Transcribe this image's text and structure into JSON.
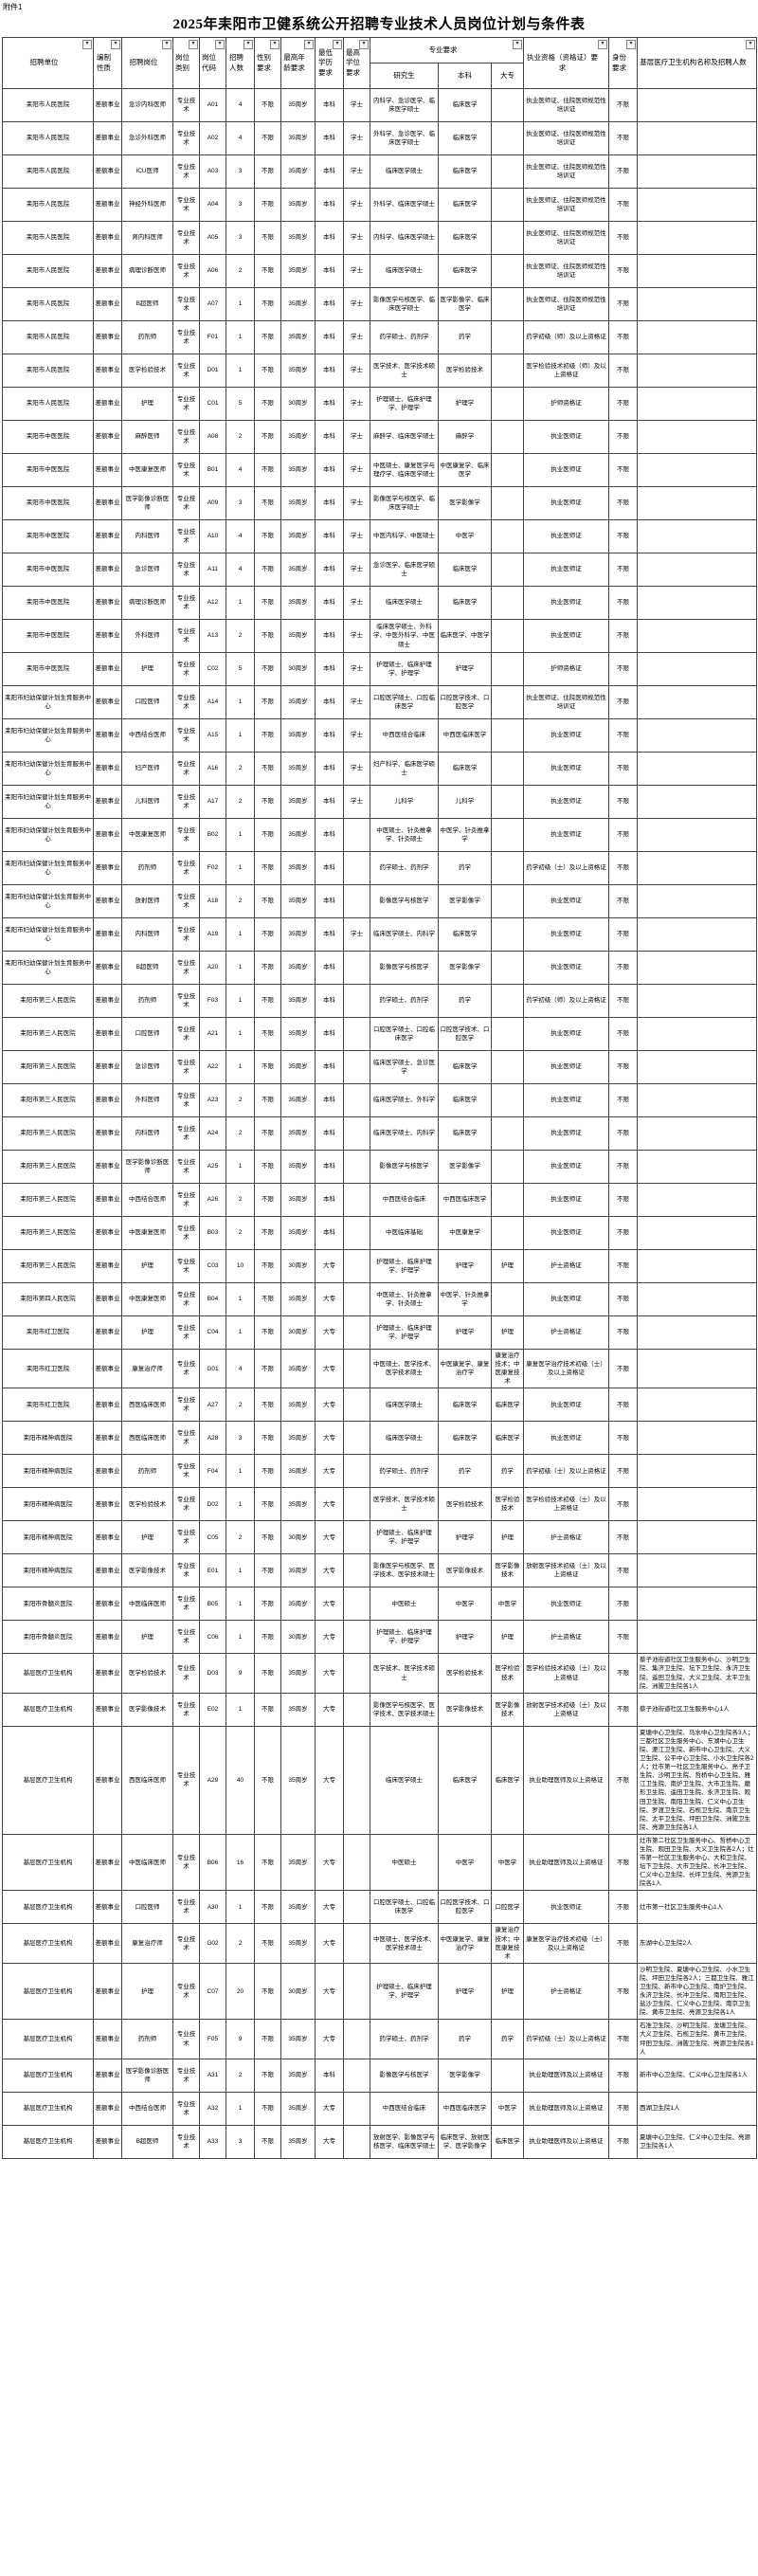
{
  "page": {
    "attachment_label": "附件1",
    "title": "2025年耒阳市卫健系统公开招聘专业技术人员岗位计划与条件表"
  },
  "table": {
    "headers": {
      "unit": "招聘单位",
      "nature": "编制性质",
      "post": "招聘岗位",
      "category": "岗位类别",
      "code": "岗位代码",
      "count": "招聘人数",
      "gender": "性别要求",
      "age": "最高年龄要求",
      "edu": "最低学历要求",
      "degree": "最高学位要求",
      "major_group": "专业要求",
      "grad": "研究生",
      "bachelor": "本科",
      "college": "大专",
      "qualification": "执业资格（资格证）要求",
      "identity": "身份要求",
      "grassroots": "基层医疗卫生机构名称及招聘人数"
    },
    "filter_icon": "▾",
    "rows": [
      [
        "耒阳市人民医院",
        "差额事业",
        "急诊内科医师",
        "专业技术",
        "A01",
        "4",
        "不限",
        "35周岁",
        "本科",
        "学士",
        "内科学、急诊医学、临床医学硕士",
        "临床医学",
        "",
        "执业医师证、住院医师规范性培训证",
        "不限",
        ""
      ],
      [
        "耒阳市人民医院",
        "差额事业",
        "急诊外科医师",
        "专业技术",
        "A02",
        "4",
        "不限",
        "35周岁",
        "本科",
        "学士",
        "外科学、急诊医学、临床医学硕士",
        "临床医学",
        "",
        "执业医师证、住院医师规范性培训证",
        "不限",
        ""
      ],
      [
        "耒阳市人民医院",
        "差额事业",
        "ICU医师",
        "专业技术",
        "A03",
        "3",
        "不限",
        "35周岁",
        "本科",
        "学士",
        "临床医学硕士",
        "临床医学",
        "",
        "执业医师证、住院医师规范性培训证",
        "不限",
        ""
      ],
      [
        "耒阳市人民医院",
        "差额事业",
        "神经外科医师",
        "专业技术",
        "A04",
        "3",
        "不限",
        "35周岁",
        "本科",
        "学士",
        "外科学、临床医学硕士",
        "临床医学",
        "",
        "执业医师证、住院医师规范性培训证",
        "不限",
        ""
      ],
      [
        "耒阳市人民医院",
        "差额事业",
        "肾内科医师",
        "专业技术",
        "A05",
        "3",
        "不限",
        "35周岁",
        "本科",
        "学士",
        "内科学、临床医学硕士",
        "临床医学",
        "",
        "执业医师证、住院医师规范性培训证",
        "不限",
        ""
      ],
      [
        "耒阳市人民医院",
        "差额事业",
        "病理诊断医师",
        "专业技术",
        "A06",
        "2",
        "不限",
        "35周岁",
        "本科",
        "学士",
        "临床医学硕士",
        "临床医学",
        "",
        "执业医师证、住院医师规范性培训证",
        "不限",
        ""
      ],
      [
        "耒阳市人民医院",
        "差额事业",
        "B超医师",
        "专业技术",
        "A07",
        "1",
        "不限",
        "35周岁",
        "本科",
        "学士",
        "影像医学与核医学、临床医学硕士",
        "医学影像学、临床医学",
        "",
        "执业医师证、住院医师规范性培训证",
        "不限",
        ""
      ],
      [
        "耒阳市人民医院",
        "差额事业",
        "药剂师",
        "专业技术",
        "F01",
        "1",
        "不限",
        "35周岁",
        "本科",
        "学士",
        "药学硕士、药剂学",
        "药学",
        "",
        "药学初级（师）及以上资格证",
        "不限",
        ""
      ],
      [
        "耒阳市人民医院",
        "差额事业",
        "医学检验技术",
        "专业技术",
        "D01",
        "1",
        "不限",
        "35周岁",
        "本科",
        "学士",
        "医学技术、医学技术硕士",
        "医学检验技术",
        "",
        "医学检验技术初级（师）及以上资格证",
        "不限",
        ""
      ],
      [
        "耒阳市人民医院",
        "差额事业",
        "护理",
        "专业技术",
        "C01",
        "5",
        "不限",
        "30周岁",
        "本科",
        "学士",
        "护理硕士、临床护理学、护理学",
        "护理学",
        "",
        "护师资格证",
        "不限",
        ""
      ],
      [
        "耒阳市中医医院",
        "差额事业",
        "麻醉医师",
        "专业技术",
        "A08",
        "2",
        "不限",
        "35周岁",
        "本科",
        "学士",
        "麻醉学、临床医学硕士",
        "麻醉学",
        "",
        "执业医师证",
        "不限",
        ""
      ],
      [
        "耒阳市中医医院",
        "差额事业",
        "中医康复医师",
        "专业技术",
        "B01",
        "4",
        "不限",
        "35周岁",
        "本科",
        "学士",
        "中医硕士、康复医学与理疗学、临床医学硕士",
        "中医康复学、临床医学",
        "",
        "执业医师证",
        "不限",
        ""
      ],
      [
        "耒阳市中医医院",
        "差额事业",
        "医学影像诊断医师",
        "专业技术",
        "A09",
        "3",
        "不限",
        "35周岁",
        "本科",
        "学士",
        "影像医学与核医学、临床医学硕士",
        "医学影像学",
        "",
        "执业医师证",
        "不限",
        ""
      ],
      [
        "耒阳市中医医院",
        "差额事业",
        "内科医师",
        "专业技术",
        "A10",
        "4",
        "不限",
        "35周岁",
        "本科",
        "学士",
        "中医内科学、中医硕士",
        "中医学",
        "",
        "执业医师证",
        "不限",
        ""
      ],
      [
        "耒阳市中医医院",
        "差额事业",
        "急诊医师",
        "专业技术",
        "A11",
        "4",
        "不限",
        "35周岁",
        "本科",
        "学士",
        "急诊医学、临床医学硕士",
        "临床医学",
        "",
        "执业医师证",
        "不限",
        ""
      ],
      [
        "耒阳市中医医院",
        "差额事业",
        "病理诊断医师",
        "专业技术",
        "A12",
        "1",
        "不限",
        "35周岁",
        "本科",
        "学士",
        "临床医学硕士",
        "临床医学",
        "",
        "执业医师证",
        "不限",
        ""
      ],
      [
        "耒阳市中医医院",
        "差额事业",
        "外科医师",
        "专业技术",
        "A13",
        "2",
        "不限",
        "35周岁",
        "本科",
        "学士",
        "临床医学硕士、外科学、中医外科学、中医硕士",
        "临床医学、中医学",
        "",
        "执业医师证",
        "不限",
        ""
      ],
      [
        "耒阳市中医医院",
        "差额事业",
        "护理",
        "专业技术",
        "C02",
        "5",
        "不限",
        "30周岁",
        "本科",
        "学士",
        "护理硕士、临床护理学、护理学",
        "护理学",
        "",
        "护师资格证",
        "不限",
        ""
      ],
      [
        "耒阳市妇幼保健计划生育服务中心",
        "差额事业",
        "口腔医师",
        "专业技术",
        "A14",
        "1",
        "不限",
        "35周岁",
        "本科",
        "学士",
        "口腔医学硕士、口腔临床医学",
        "口腔医学技术、口腔医学",
        "",
        "执业医师证、住院医师规范性培训证",
        "不限",
        ""
      ],
      [
        "耒阳市妇幼保健计划生育服务中心",
        "差额事业",
        "中西结合医师",
        "专业技术",
        "A15",
        "1",
        "不限",
        "35周岁",
        "本科",
        "学士",
        "中西医结合临床",
        "中西医临床医学",
        "",
        "执业医师证",
        "不限",
        ""
      ],
      [
        "耒阳市妇幼保健计划生育服务中心",
        "差额事业",
        "妇产医师",
        "专业技术",
        "A16",
        "2",
        "不限",
        "35周岁",
        "本科",
        "学士",
        "妇产科学、临床医学硕士",
        "临床医学",
        "",
        "执业医师证",
        "不限",
        ""
      ],
      [
        "耒阳市妇幼保健计划生育服务中心",
        "差额事业",
        "儿科医师",
        "专业技术",
        "A17",
        "2",
        "不限",
        "35周岁",
        "本科",
        "学士",
        "儿科学",
        "儿科学",
        "",
        "执业医师证",
        "不限",
        ""
      ],
      [
        "耒阳市妇幼保健计划生育服务中心",
        "差额事业",
        "中医康复医师",
        "专业技术",
        "B02",
        "1",
        "不限",
        "35周岁",
        "本科",
        "",
        "中医硕士、针灸推拿学、针灸硕士",
        "中医学、针灸推拿学",
        "",
        "执业医师证",
        "不限",
        ""
      ],
      [
        "耒阳市妇幼保健计划生育服务中心",
        "差额事业",
        "药剂师",
        "专业技术",
        "F02",
        "1",
        "不限",
        "35周岁",
        "本科",
        "",
        "药学硕士、药剂学",
        "药学",
        "",
        "药学初级（士）及以上资格证",
        "不限",
        ""
      ],
      [
        "耒阳市妇幼保健计划生育服务中心",
        "差额事业",
        "放射医师",
        "专业技术",
        "A18",
        "2",
        "不限",
        "35周岁",
        "本科",
        "",
        "影像医学与核医学",
        "医学影像学",
        "",
        "执业医师证",
        "不限",
        ""
      ],
      [
        "耒阳市妇幼保健计划生育服务中心",
        "差额事业",
        "内科医师",
        "专业技术",
        "A19",
        "1",
        "不限",
        "35周岁",
        "本科",
        "学士",
        "临床医学硕士、内科学",
        "临床医学",
        "",
        "执业医师证",
        "不限",
        ""
      ],
      [
        "耒阳市妇幼保健计划生育服务中心",
        "差额事业",
        "B超医师",
        "专业技术",
        "A20",
        "1",
        "不限",
        "35周岁",
        "本科",
        "",
        "影像医学与核医学",
        "医学影像学",
        "",
        "执业医师证",
        "不限",
        ""
      ],
      [
        "耒阳市第三人民医院",
        "差额事业",
        "药剂师",
        "专业技术",
        "F03",
        "1",
        "不限",
        "35周岁",
        "本科",
        "",
        "药学硕士、药剂学",
        "药学",
        "",
        "药学初级（师）及以上资格证",
        "不限",
        ""
      ],
      [
        "耒阳市第三人民医院",
        "差额事业",
        "口腔医师",
        "专业技术",
        "A21",
        "1",
        "不限",
        "35周岁",
        "本科",
        "",
        "口腔医学硕士、口腔临床医学",
        "口腔医学技术、口腔医学",
        "",
        "执业医师证",
        "不限",
        ""
      ],
      [
        "耒阳市第三人民医院",
        "差额事业",
        "急诊医师",
        "专业技术",
        "A22",
        "1",
        "不限",
        "35周岁",
        "本科",
        "",
        "临床医学硕士、急诊医学",
        "临床医学",
        "",
        "执业医师证",
        "不限",
        ""
      ],
      [
        "耒阳市第三人民医院",
        "差额事业",
        "外科医师",
        "专业技术",
        "A23",
        "2",
        "不限",
        "35周岁",
        "本科",
        "",
        "临床医学硕士、外科学",
        "临床医学",
        "",
        "执业医师证",
        "不限",
        ""
      ],
      [
        "耒阳市第三人民医院",
        "差额事业",
        "内科医师",
        "专业技术",
        "A24",
        "2",
        "不限",
        "35周岁",
        "本科",
        "",
        "临床医学硕士、内科学",
        "临床医学",
        "",
        "执业医师证",
        "不限",
        ""
      ],
      [
        "耒阳市第三人民医院",
        "差额事业",
        "医学影像诊断医师",
        "专业技术",
        "A25",
        "1",
        "不限",
        "35周岁",
        "本科",
        "",
        "影像医学与核医学",
        "医学影像学",
        "",
        "执业医师证",
        "不限",
        ""
      ],
      [
        "耒阳市第三人民医院",
        "差额事业",
        "中西结合医师",
        "专业技术",
        "A26",
        "2",
        "不限",
        "35周岁",
        "本科",
        "",
        "中西医结合临床",
        "中西医临床医学",
        "",
        "执业医师证",
        "不限",
        ""
      ],
      [
        "耒阳市第三人民医院",
        "差额事业",
        "中医康复医师",
        "专业技术",
        "B03",
        "2",
        "不限",
        "35周岁",
        "本科",
        "",
        "中医临床基础",
        "中医康复学",
        "",
        "执业医师证",
        "不限",
        ""
      ],
      [
        "耒阳市第三人民医院",
        "差额事业",
        "护理",
        "专业技术",
        "C03",
        "10",
        "不限",
        "30周岁",
        "大专",
        "",
        "护理硕士、临床护理学、护理学",
        "护理学",
        "护理",
        "护士资格证",
        "不限",
        ""
      ],
      [
        "耒阳市第四人民医院",
        "差额事业",
        "中医康复医师",
        "专业技术",
        "B04",
        "1",
        "不限",
        "35周岁",
        "大专",
        "",
        "中医硕士、针灸推拿学、针灸硕士",
        "中医学、针灸推拿学",
        "",
        "执业医师证",
        "不限",
        ""
      ],
      [
        "耒阳市红卫医院",
        "差额事业",
        "护理",
        "专业技术",
        "C04",
        "1",
        "不限",
        "30周岁",
        "大专",
        "",
        "护理硕士、临床护理学、护理学",
        "护理学",
        "护理",
        "护士资格证",
        "不限",
        ""
      ],
      [
        "耒阳市红卫医院",
        "差额事业",
        "康复治疗师",
        "专业技术",
        "G01",
        "4",
        "不限",
        "35周岁",
        "大专",
        "",
        "中医硕士、医学技术、医学技术硕士",
        "中医康复学、康复治疗学",
        "康复治疗技术；中医康复技术",
        "康复医学治疗技术初级（士）及以上资格证",
        "不限",
        ""
      ],
      [
        "耒阳市红卫医院",
        "差额事业",
        "西医临床医师",
        "专业技术",
        "A27",
        "2",
        "不限",
        "35周岁",
        "大专",
        "",
        "临床医学硕士",
        "临床医学",
        "临床医学",
        "执业医师证",
        "不限",
        ""
      ],
      [
        "耒阳市精神病医院",
        "差额事业",
        "西医临床医师",
        "专业技术",
        "A28",
        "3",
        "不限",
        "35周岁",
        "大专",
        "",
        "临床医学硕士",
        "临床医学",
        "临床医学",
        "执业医师证",
        "不限",
        ""
      ],
      [
        "耒阳市精神病医院",
        "差额事业",
        "药剂师",
        "专业技术",
        "F04",
        "1",
        "不限",
        "35周岁",
        "大专",
        "",
        "药学硕士、药剂学",
        "药学",
        "药学",
        "药学初级（士）及以上资格证",
        "不限",
        ""
      ],
      [
        "耒阳市精神病医院",
        "差额事业",
        "医学检验技术",
        "专业技术",
        "D02",
        "1",
        "不限",
        "35周岁",
        "大专",
        "",
        "医学技术、医学技术硕士",
        "医学检验技术",
        "医学检验技术",
        "医学检验技术初级（士）及以上资格证",
        "不限",
        ""
      ],
      [
        "耒阳市精神病医院",
        "差额事业",
        "护理",
        "专业技术",
        "C05",
        "2",
        "不限",
        "30周岁",
        "大专",
        "",
        "护理硕士、临床护理学、护理学",
        "护理学",
        "护理",
        "护士资格证",
        "不限",
        ""
      ],
      [
        "耒阳市精神病医院",
        "差额事业",
        "医学影像技术",
        "专业技术",
        "E01",
        "1",
        "不限",
        "35周岁",
        "大专",
        "",
        "影像医学与核医学、医学技术、医学技术硕士",
        "医学影像技术",
        "医学影像技术",
        "放射医学技术初级（士）及以上资格证",
        "不限",
        ""
      ],
      [
        "耒阳市骨髓炎医院",
        "差额事业",
        "中医临床医师",
        "专业技术",
        "B05",
        "1",
        "不限",
        "35周岁",
        "大专",
        "",
        "中医硕士",
        "中医学",
        "中医学",
        "执业医师证",
        "不限",
        ""
      ],
      [
        "耒阳市骨髓炎医院",
        "差额事业",
        "护理",
        "专业技术",
        "C06",
        "1",
        "不限",
        "30周岁",
        "大专",
        "",
        "护理硕士、临床护理学、护理学",
        "护理学",
        "护理",
        "护士资格证",
        "不限",
        ""
      ],
      [
        "基层医疗卫生机构",
        "差额事业",
        "医学检验技术",
        "专业技术",
        "D03",
        "9",
        "不限",
        "35周岁",
        "大专",
        "",
        "医学技术、医学技术硕士",
        "医学检验技术",
        "医学检验技术",
        "医学检验技术初级（士）及以上资格证",
        "不限",
        "蔡子池街道社区卫生服务中心、沙明卫生院、集济卫生院、坛下卫生院、永济卫生院、遥田卫生院、大义卫生院、太平卫生院、洲陂卫生院各1人"
      ],
      [
        "基层医疗卫生机构",
        "差额事业",
        "医学影像技术",
        "专业技术",
        "E02",
        "1",
        "不限",
        "35周岁",
        "大专",
        "",
        "影像医学与核医学、医学技术、医学技术硕士",
        "医学影像技术",
        "医学影像技术",
        "放射医学技术初级（士）及以上资格证",
        "不限",
        "蔡子池街道社区卫生服务中心1人"
      ],
      [
        "基层医疗卫生机构",
        "差额事业",
        "西医临床医师",
        "专业技术",
        "A29",
        "40",
        "不限",
        "35周岁",
        "大专",
        "",
        "临床医学硕士",
        "临床医学",
        "临床医学",
        "执业助理医师及以上资格证",
        "不限",
        "夏塘中心卫生院、马水中心卫生院各3人；三都社区卫生服务中心、东湖中心卫生院、淝江卫生院、新市中心卫生院、大义卫生院、公平中心卫生院、小水卫生院各2人；灶市第一社区卫生服务中心、亮子卫生院、沙明卫生院、哲桥中心卫生院、雅江卫生院、南炉卫生院、大市卫生院、磨形卫生院、遥田卫生院、永济卫生院、观田卫生院、南阳卫生院、仁义中心卫生院、罗渡卫生院、石枧卫生院、南京卫生院、太平卫生院、坪田卫生院、洲陂卫生院、亮源卫生院各1人"
      ],
      [
        "基层医疗卫生机构",
        "差额事业",
        "中医临床医师",
        "专业技术",
        "B06",
        "16",
        "不限",
        "35周岁",
        "大专",
        "",
        "中医硕士",
        "中医学",
        "中医学",
        "执业助理医师及以上资格证",
        "不限",
        "灶市第二社区卫生服务中心、哲桥中心卫生院、观田卫生院、大义卫生院各2人；灶市第一社区卫生服务中心、大和卫生院、坛下卫生院、大市卫生院、长冲卫生院、仁义中心卫生院、长坪卫生院、亮源卫生院各1人"
      ],
      [
        "基层医疗卫生机构",
        "差额事业",
        "口腔医师",
        "专业技术",
        "A30",
        "1",
        "不限",
        "35周岁",
        "大专",
        "",
        "口腔医学硕士、口腔临床医学",
        "口腔医学技术、口腔医学",
        "口腔医学",
        "执业医师证",
        "不限",
        "灶市第一社区卫生服务中心1人"
      ],
      [
        "基层医疗卫生机构",
        "差额事业",
        "康复治疗师",
        "专业技术",
        "G02",
        "2",
        "不限",
        "35周岁",
        "大专",
        "",
        "中医硕士、医学技术、医学技术硕士",
        "中医康复学、康复治疗学",
        "康复治疗技术；中医康复技术",
        "康复医学治疗技术初级（士）及以上资格证",
        "不限",
        "东湖中心卫生院2人"
      ],
      [
        "基层医疗卫生机构",
        "差额事业",
        "护理",
        "专业技术",
        "C07",
        "20",
        "不限",
        "30周岁",
        "大专",
        "",
        "护理硕士、临床护理学、护理学",
        "护理学",
        "护理",
        "护士资格证",
        "不限",
        "沙明卫生院、夏塘中心卫生院、小水卫生院、坪田卫生院各2人；三都卫生院、雅江卫生院、新市中心卫生院、南炉卫生院、永济卫生院、长冲卫生院、南阳卫生院、盐沙卫生院、仁义中心卫生院、南京卫生院、黄市卫生院、亮源卫生院各1人"
      ],
      [
        "基层医疗卫生机构",
        "差额事业",
        "药剂师",
        "专业技术",
        "F05",
        "9",
        "不限",
        "35周岁",
        "大专",
        "",
        "药学硕士、药剂学",
        "药学",
        "药学",
        "药学初级（士）及以上资格证",
        "不限",
        "石准卫生院、沙明卫生院、龙塘卫生院、大义卫生院、石枧卫生院、黄市卫生院、坪田卫生院、洲陂卫生院、亮源卫生院各1人"
      ],
      [
        "基层医疗卫生机构",
        "差额事业",
        "医学影像诊断医师",
        "专业技术",
        "A31",
        "2",
        "不限",
        "35周岁",
        "本科",
        "",
        "影像医学与核医学",
        "医学影像学",
        "",
        "执业助理医师及以上资格证",
        "不限",
        "新市中心卫生院、仁义中心卫生院各1人"
      ],
      [
        "基层医疗卫生机构",
        "差额事业",
        "中西结合医师",
        "专业技术",
        "A32",
        "1",
        "不限",
        "35周岁",
        "大专",
        "",
        "中西医结合临床",
        "中西医临床医学",
        "中医学",
        "执业助理医师及以上资格证",
        "不限",
        "西湖卫生院1人"
      ],
      [
        "基层医疗卫生机构",
        "差额事业",
        "B超医师",
        "专业技术",
        "A33",
        "3",
        "不限",
        "35周岁",
        "大专",
        "",
        "放射医学、影像医学与核医学、临床医学硕士",
        "临床医学、放射医学、医学影像学",
        "临床医学",
        "执业助理医师及以上资格证",
        "不限",
        "夏塘中心卫生院、仁义中心卫生院、亮源卫生院各1人"
      ]
    ]
  }
}
